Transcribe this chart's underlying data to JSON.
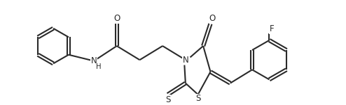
{
  "bg_color": "#ffffff",
  "line_color": "#2a2a2a",
  "line_width": 1.5,
  "font_size": 8.5,
  "figsize": [
    4.94,
    1.51
  ],
  "dpi": 100,
  "xlim": [
    0.3,
    6.2
  ],
  "ylim": [
    0.15,
    2.1
  ]
}
